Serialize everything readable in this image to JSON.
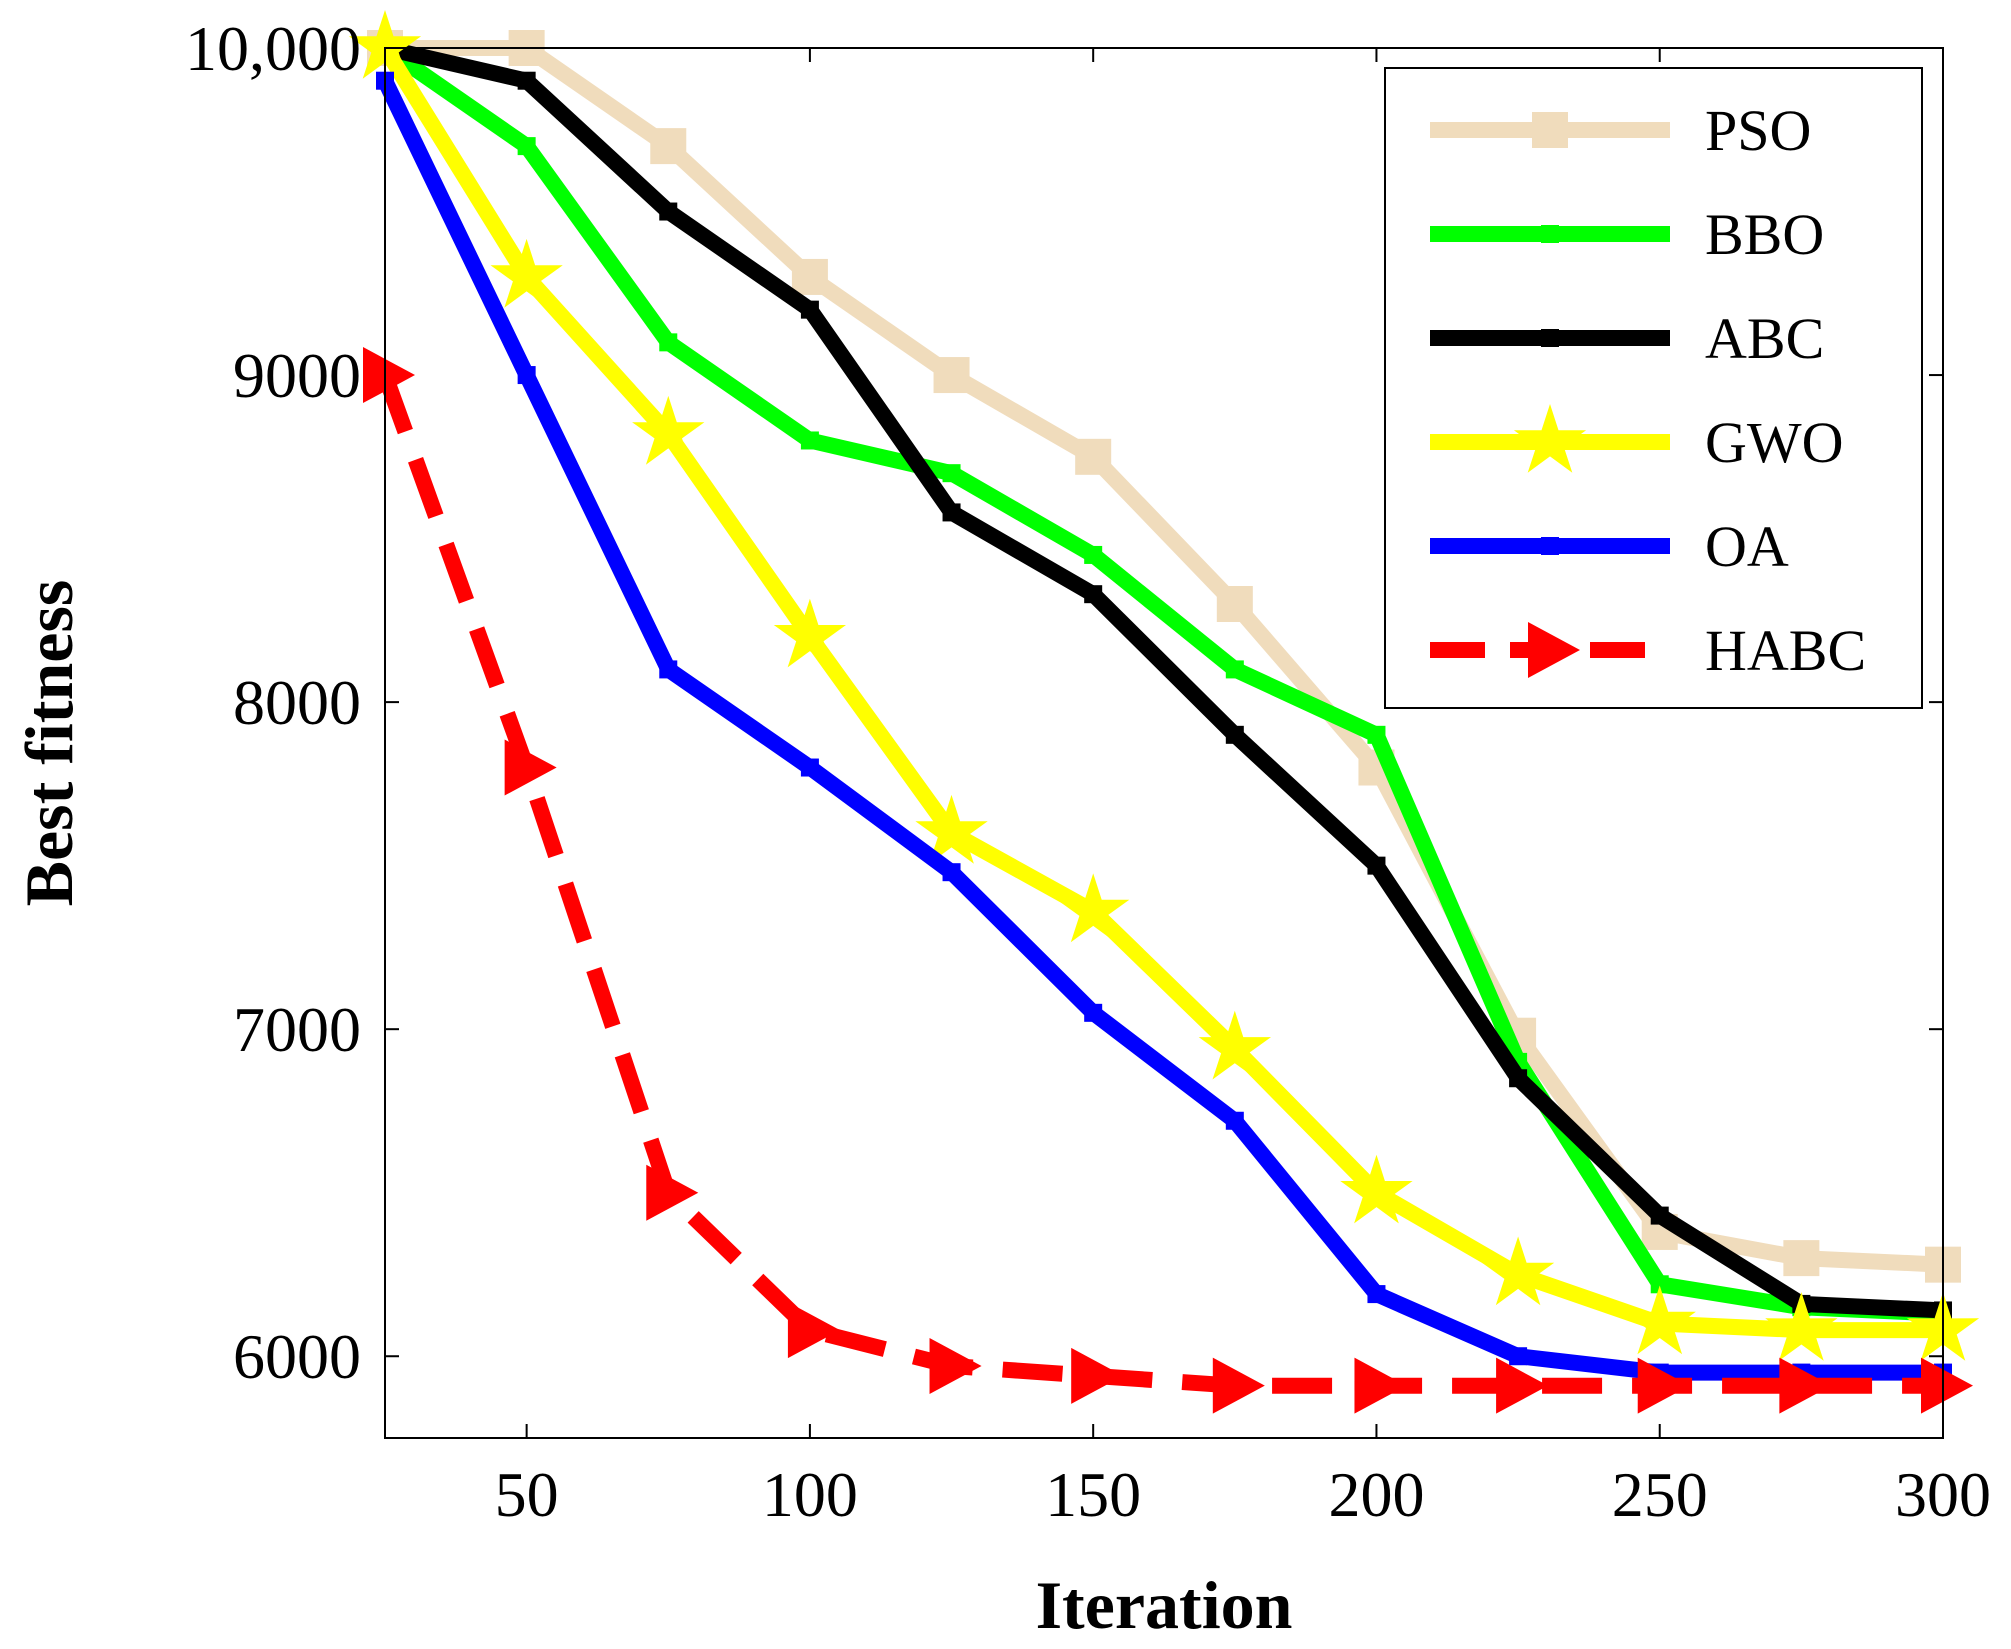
{
  "chart_data": {
    "type": "line",
    "title": "",
    "xlabel": "Iteration",
    "ylabel": "Best fitness",
    "xlim": [
      25,
      300
    ],
    "ylim": [
      5750,
      10000
    ],
    "xticks": [
      50,
      100,
      150,
      200,
      250,
      300
    ],
    "xtick_labels": [
      "50",
      "100",
      "150",
      "200",
      "250",
      "300"
    ],
    "yticks": [
      6000,
      7000,
      8000,
      9000,
      10000
    ],
    "ytick_labels": [
      "6000",
      "7000",
      "8000",
      "9000",
      "10,000"
    ],
    "grid": false,
    "legend_position": "top-right",
    "x": [
      25,
      50,
      75,
      100,
      125,
      150,
      175,
      200,
      225,
      250,
      275,
      300
    ],
    "series": [
      {
        "name": "PSO",
        "color": "#f0dcbc",
        "marker": "square",
        "dashed": false,
        "values": [
          10000,
          10000,
          9700,
          9300,
          9000,
          8750,
          8300,
          7800,
          6980,
          6380,
          6300,
          6280
        ]
      },
      {
        "name": "BBO",
        "color": "#00ff00",
        "marker": "small-square",
        "dashed": false,
        "values": [
          10000,
          9700,
          9100,
          8800,
          8700,
          8450,
          8100,
          7900,
          6900,
          6220,
          6150,
          6130
        ]
      },
      {
        "name": "ABC",
        "color": "#000000",
        "marker": "small-square",
        "dashed": false,
        "values": [
          10000,
          9900,
          9500,
          9200,
          8580,
          8330,
          7900,
          7500,
          6850,
          6430,
          6160,
          6140
        ]
      },
      {
        "name": "GWO",
        "color": "#ffff00",
        "marker": "star",
        "dashed": false,
        "values": [
          10000,
          9300,
          8820,
          8200,
          7600,
          7360,
          6940,
          6500,
          6250,
          6100,
          6080,
          6080
        ]
      },
      {
        "name": "OA",
        "color": "#0000ff",
        "marker": "small-square",
        "dashed": false,
        "values": [
          9900,
          9000,
          8100,
          7800,
          7480,
          7050,
          6720,
          6190,
          6000,
          5950,
          5950,
          5950
        ]
      },
      {
        "name": "HABC",
        "color": "#ff0000",
        "marker": "triangle-right",
        "dashed": true,
        "values": [
          9000,
          7800,
          6500,
          6080,
          5970,
          5940,
          5910,
          5910,
          5910,
          5910,
          5910,
          5910
        ]
      }
    ]
  }
}
